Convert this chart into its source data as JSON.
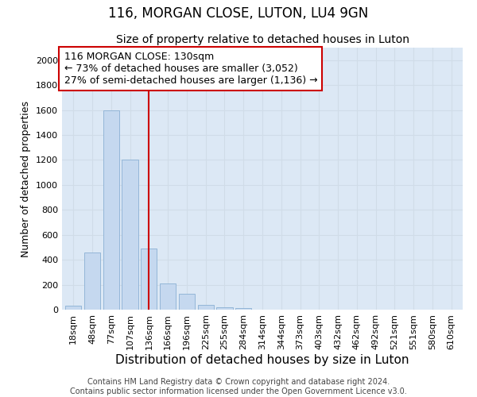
{
  "title": "116, MORGAN CLOSE, LUTON, LU4 9GN",
  "subtitle": "Size of property relative to detached houses in Luton",
  "xlabel": "Distribution of detached houses by size in Luton",
  "ylabel": "Number of detached properties",
  "categories": [
    "18sqm",
    "48sqm",
    "77sqm",
    "107sqm",
    "136sqm",
    "166sqm",
    "196sqm",
    "225sqm",
    "255sqm",
    "284sqm",
    "314sqm",
    "344sqm",
    "373sqm",
    "403sqm",
    "432sqm",
    "462sqm",
    "492sqm",
    "521sqm",
    "551sqm",
    "580sqm",
    "610sqm"
  ],
  "values": [
    30,
    460,
    1600,
    1200,
    490,
    210,
    125,
    40,
    20,
    12,
    0,
    0,
    0,
    0,
    0,
    0,
    0,
    0,
    0,
    0,
    0
  ],
  "bar_color": "#c5d8ef",
  "bar_edge_color": "#8ab0d4",
  "vline_color": "#cc0000",
  "vline_position": 4.0,
  "annotation_line1": "116 MORGAN CLOSE: 130sqm",
  "annotation_line2": "← 73% of detached houses are smaller (3,052)",
  "annotation_line3": "27% of semi-detached houses are larger (1,136) →",
  "annotation_box_edgecolor": "#cc0000",
  "ylim": [
    0,
    2100
  ],
  "yticks": [
    0,
    200,
    400,
    600,
    800,
    1000,
    1200,
    1400,
    1600,
    1800,
    2000
  ],
  "grid_color": "#d0dce8",
  "bg_color": "#dce8f5",
  "title_fontsize": 12,
  "subtitle_fontsize": 10,
  "xlabel_fontsize": 11,
  "ylabel_fontsize": 9,
  "tick_fontsize": 8,
  "annotation_fontsize": 9,
  "footer_line1": "Contains HM Land Registry data © Crown copyright and database right 2024.",
  "footer_line2": "Contains public sector information licensed under the Open Government Licence v3.0.",
  "footer_fontsize": 7
}
